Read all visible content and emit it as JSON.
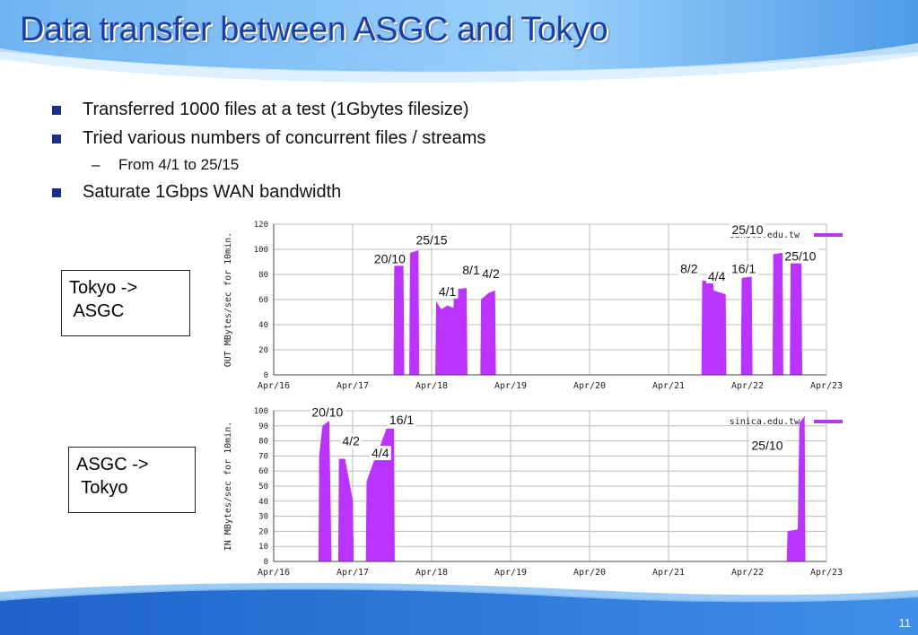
{
  "slide": {
    "title": "Data transfer between ASGC and Tokyo",
    "bullets": [
      "Transferred 1000 files at a test (1Gbytes filesize)",
      "Tried various numbers of concurrent files / streams",
      "Saturate 1Gbps WAN bandwidth"
    ],
    "sub_bullet": "From 4/1 to 25/15",
    "page_number": "11",
    "box_out": "Tokyo ->\n ASGC",
    "box_in": "ASGC ->\n Tokyo",
    "accent_color": "#1a3fa8",
    "series_color": "#bb33ff"
  },
  "chart_data": [
    {
      "type": "area",
      "ylabel": "OUT MBytes/sec for 10min.",
      "ylim": [
        0,
        120
      ],
      "yticks": [
        0,
        20,
        40,
        60,
        80,
        100,
        120
      ],
      "xticks": [
        "Apr/16",
        "Apr/17",
        "Apr/18",
        "Apr/19",
        "Apr/20",
        "Apr/21",
        "Apr/22",
        "Apr/23"
      ],
      "legend": "sinica.edu.tw",
      "grid": true,
      "series": [
        {
          "values": [
            {
              "x": 0.0,
              "y": 0
            },
            {
              "x": 1.52,
              "y": 0
            },
            {
              "x": 1.53,
              "y": 87
            },
            {
              "x": 1.64,
              "y": 87
            },
            {
              "x": 1.65,
              "y": 0
            },
            {
              "x": 1.72,
              "y": 0
            },
            {
              "x": 1.73,
              "y": 97
            },
            {
              "x": 1.83,
              "y": 99
            },
            {
              "x": 1.84,
              "y": 0
            },
            {
              "x": 2.05,
              "y": 0
            },
            {
              "x": 2.06,
              "y": 58
            },
            {
              "x": 2.12,
              "y": 52
            },
            {
              "x": 2.2,
              "y": 55
            },
            {
              "x": 2.28,
              "y": 53
            },
            {
              "x": 2.29,
              "y": 68
            },
            {
              "x": 2.44,
              "y": 69
            },
            {
              "x": 2.45,
              "y": 0
            },
            {
              "x": 2.62,
              "y": 0
            },
            {
              "x": 2.63,
              "y": 60
            },
            {
              "x": 2.72,
              "y": 65
            },
            {
              "x": 2.8,
              "y": 67
            },
            {
              "x": 2.81,
              "y": 0
            },
            {
              "x": 5.42,
              "y": 0
            },
            {
              "x": 5.43,
              "y": 75
            },
            {
              "x": 5.56,
              "y": 74
            },
            {
              "x": 5.57,
              "y": 67
            },
            {
              "x": 5.72,
              "y": 64
            },
            {
              "x": 5.73,
              "y": 0
            },
            {
              "x": 5.92,
              "y": 0
            },
            {
              "x": 5.93,
              "y": 77
            },
            {
              "x": 6.05,
              "y": 78
            },
            {
              "x": 6.06,
              "y": 0
            },
            {
              "x": 6.32,
              "y": 0
            },
            {
              "x": 6.33,
              "y": 96
            },
            {
              "x": 6.44,
              "y": 97
            },
            {
              "x": 6.45,
              "y": 0
            },
            {
              "x": 6.54,
              "y": 0
            },
            {
              "x": 6.55,
              "y": 94
            },
            {
              "x": 6.68,
              "y": 93
            },
            {
              "x": 6.69,
              "y": 0
            },
            {
              "x": 7.0,
              "y": 0
            }
          ]
        }
      ],
      "annotations": [
        {
          "text": "25/10",
          "x": 6.0,
          "y": 112
        },
        {
          "text": "25/15",
          "x": 2.0,
          "y": 104
        },
        {
          "text": "20/10",
          "x": 1.47,
          "y": 89
        },
        {
          "text": "25/10",
          "x": 6.67,
          "y": 91
        },
        {
          "text": "8/1",
          "x": 2.5,
          "y": 80
        },
        {
          "text": "4/2",
          "x": 2.75,
          "y": 77
        },
        {
          "text": "8/2",
          "x": 5.26,
          "y": 81
        },
        {
          "text": "4/4",
          "x": 5.61,
          "y": 75
        },
        {
          "text": "16/1",
          "x": 5.95,
          "y": 81
        },
        {
          "text": "4/1",
          "x": 2.2,
          "y": 63
        }
      ]
    },
    {
      "type": "area",
      "ylabel": "IN MBytes/sec for 10min.",
      "ylim": [
        0,
        100
      ],
      "yticks": [
        0,
        10,
        20,
        30,
        40,
        50,
        60,
        70,
        80,
        90,
        100
      ],
      "xticks": [
        "Apr/16",
        "Apr/17",
        "Apr/18",
        "Apr/19",
        "Apr/20",
        "Apr/21",
        "Apr/22",
        "Apr/23"
      ],
      "legend": "sinica.edu.tw",
      "grid": true,
      "series": [
        {
          "values": [
            {
              "x": 0.0,
              "y": 0
            },
            {
              "x": 0.57,
              "y": 0
            },
            {
              "x": 0.58,
              "y": 70
            },
            {
              "x": 0.62,
              "y": 90
            },
            {
              "x": 0.7,
              "y": 93
            },
            {
              "x": 0.73,
              "y": 0
            },
            {
              "x": 0.82,
              "y": 0
            },
            {
              "x": 0.83,
              "y": 68
            },
            {
              "x": 0.9,
              "y": 68
            },
            {
              "x": 0.93,
              "y": 60
            },
            {
              "x": 1.0,
              "y": 40
            },
            {
              "x": 1.01,
              "y": 0
            },
            {
              "x": 1.17,
              "y": 0
            },
            {
              "x": 1.18,
              "y": 53
            },
            {
              "x": 1.26,
              "y": 65
            },
            {
              "x": 1.34,
              "y": 75
            },
            {
              "x": 1.43,
              "y": 88
            },
            {
              "x": 1.52,
              "y": 88
            },
            {
              "x": 1.53,
              "y": 0
            },
            {
              "x": 6.5,
              "y": 0
            },
            {
              "x": 6.51,
              "y": 20
            },
            {
              "x": 6.64,
              "y": 21
            },
            {
              "x": 6.66,
              "y": 92
            },
            {
              "x": 6.72,
              "y": 96
            },
            {
              "x": 6.73,
              "y": 0
            },
            {
              "x": 7.0,
              "y": 0
            }
          ]
        }
      ],
      "annotations": [
        {
          "text": "20/10",
          "x": 0.68,
          "y": 96
        },
        {
          "text": "16/1",
          "x": 1.62,
          "y": 91
        },
        {
          "text": "4/2",
          "x": 0.98,
          "y": 77
        },
        {
          "text": "4/4",
          "x": 1.35,
          "y": 69
        },
        {
          "text": "25/10",
          "x": 6.25,
          "y": 74
        }
      ]
    }
  ]
}
